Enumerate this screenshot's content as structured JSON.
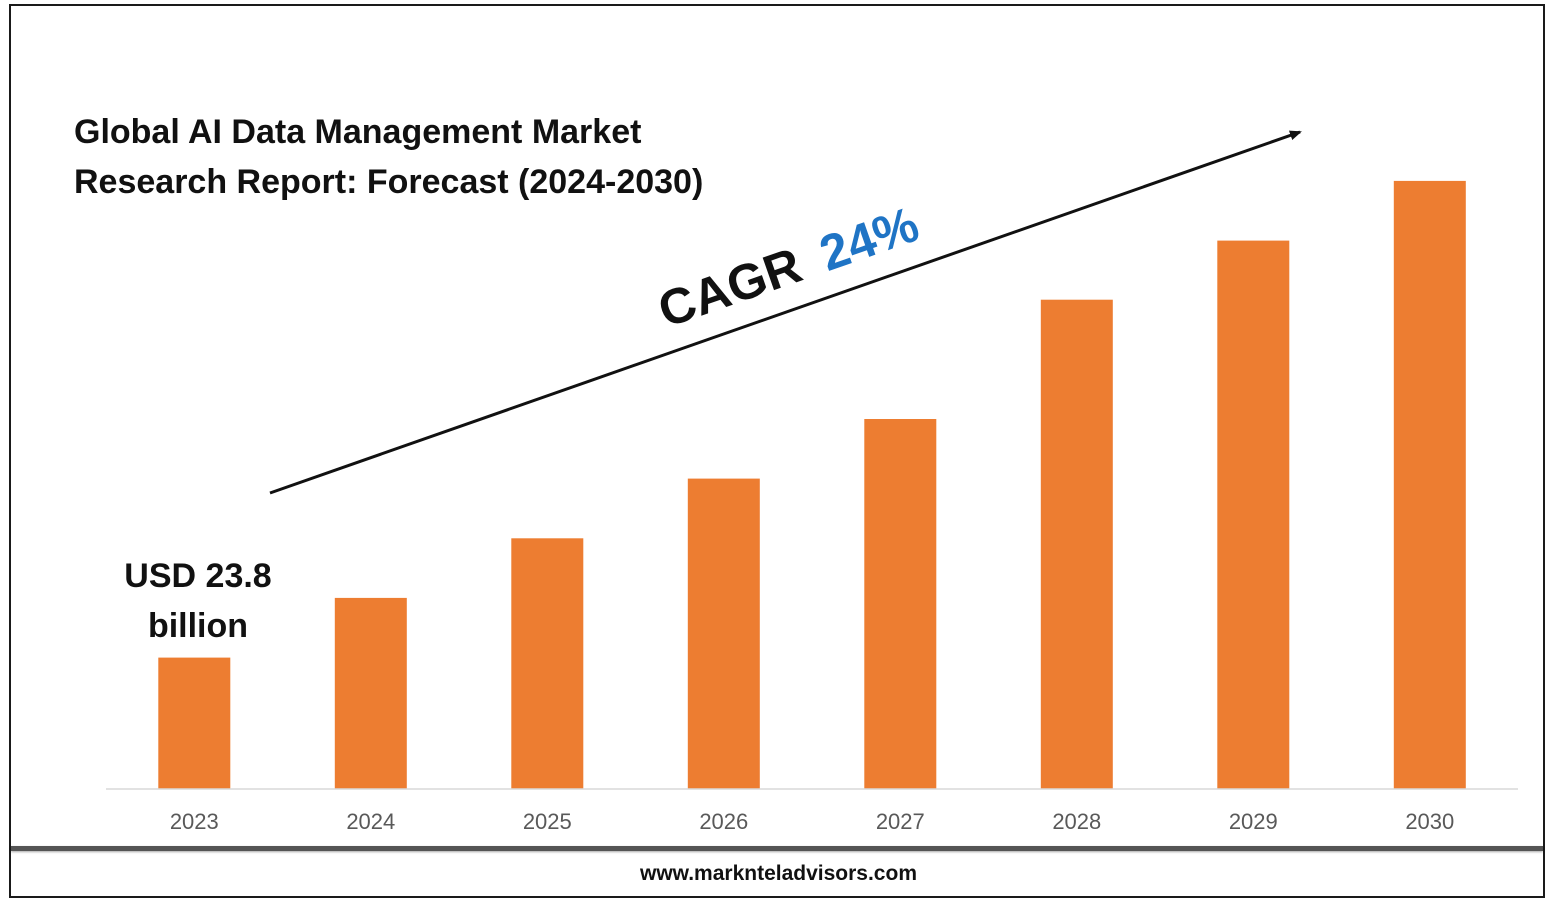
{
  "chart_data": {
    "type": "bar",
    "title": "Global AI Data Management Market Research Report: Forecast (2024-2030)",
    "title_lines": [
      "Global AI Data Management Market",
      "Research Report: Forecast (2024-2030)"
    ],
    "categories": [
      "2023",
      "2024",
      "2025",
      "2026",
      "2027",
      "2028",
      "2029",
      "2030"
    ],
    "values": [
      23.8,
      34.6,
      45.4,
      56.2,
      67.0,
      88.6,
      99.3,
      110.1
    ],
    "ylim": [
      0,
      132
    ],
    "xlabel": "",
    "ylabel": "",
    "grid": false,
    "bar_color": "#ED7D31",
    "annotations": {
      "first_value_lines": [
        "USD 23.8",
        "billion"
      ],
      "cagr_prefix": "CAGR",
      "cagr_value": "24%",
      "cagr_value_color": "#1F74C5",
      "trend_arrow": "up-right"
    }
  },
  "footer": {
    "url": "www.marknteladvisors.com"
  }
}
